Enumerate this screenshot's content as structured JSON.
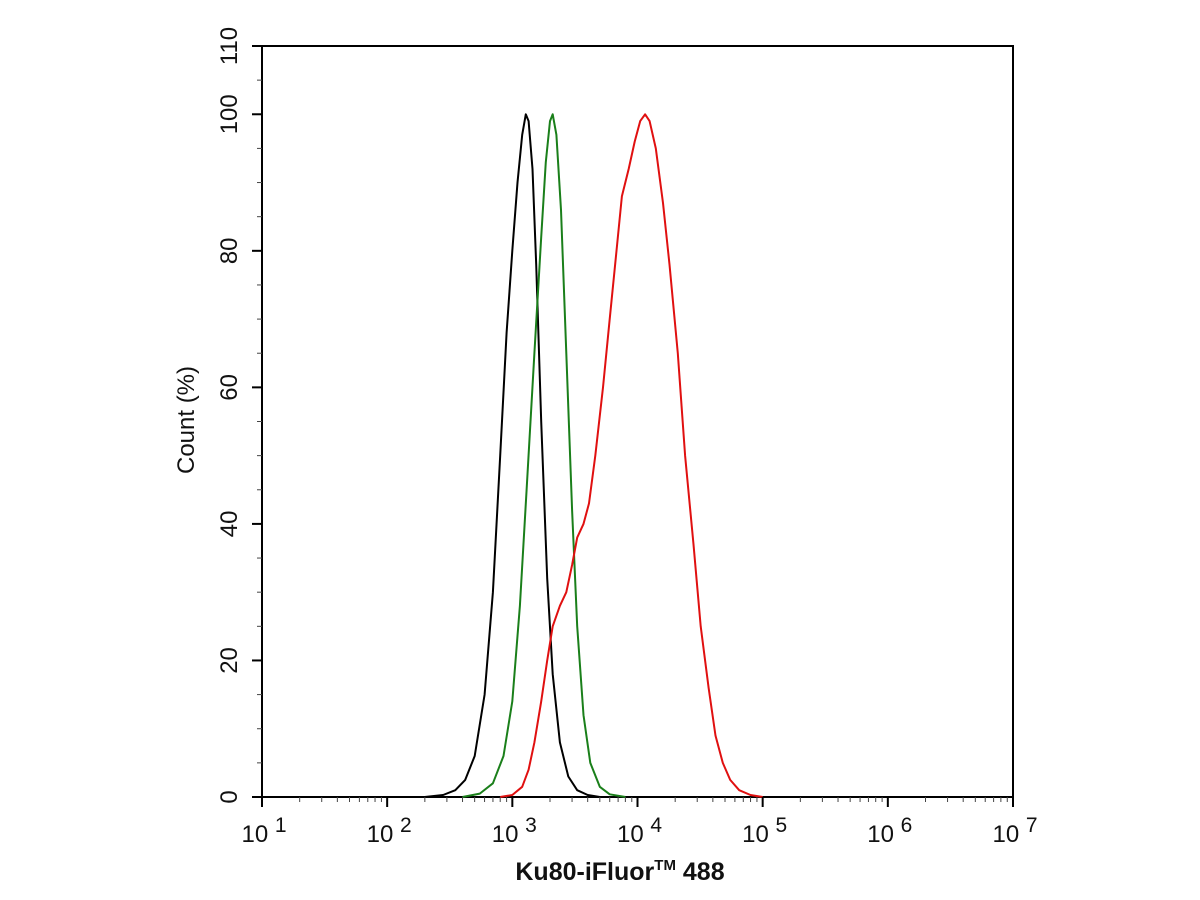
{
  "chart_data": {
    "type": "line",
    "title": "",
    "xlabel_main": "Ku80-iFluor",
    "xlabel_tm": "TM",
    "xlabel_tail": " 488",
    "ylabel": "Count  (%)",
    "x_scale": "log",
    "xlim": [
      10,
      10000000
    ],
    "ylim": [
      0,
      110
    ],
    "grid": false,
    "legend": "none",
    "x_ticks": [
      {
        "base": "10",
        "exp": "1",
        "value": 10
      },
      {
        "base": "10",
        "exp": "2",
        "value": 100
      },
      {
        "base": "10",
        "exp": "3",
        "value": 1000
      },
      {
        "base": "10",
        "exp": "4",
        "value": 10000
      },
      {
        "base": "10",
        "exp": "5",
        "value": 100000
      },
      {
        "base": "10",
        "exp": "6",
        "value": 1000000
      },
      {
        "base": "10",
        "exp": "7",
        "value": 10000000
      }
    ],
    "y_ticks": [
      "0",
      "20",
      "40",
      "60",
      "80",
      "100",
      "110"
    ],
    "series": [
      {
        "color": "#000000",
        "points": [
          [
            200,
            0
          ],
          [
            280,
            0.3
          ],
          [
            350,
            1
          ],
          [
            420,
            2.5
          ],
          [
            500,
            6
          ],
          [
            600,
            15
          ],
          [
            700,
            30
          ],
          [
            800,
            50
          ],
          [
            900,
            68
          ],
          [
            1000,
            80
          ],
          [
            1100,
            90
          ],
          [
            1200,
            97
          ],
          [
            1280,
            100
          ],
          [
            1350,
            99
          ],
          [
            1450,
            92
          ],
          [
            1550,
            78
          ],
          [
            1700,
            55
          ],
          [
            1900,
            32
          ],
          [
            2100,
            18
          ],
          [
            2400,
            8
          ],
          [
            2800,
            3
          ],
          [
            3300,
            1
          ],
          [
            4000,
            0.3
          ],
          [
            5000,
            0
          ]
        ]
      },
      {
        "color": "#1a7f1a",
        "points": [
          [
            400,
            0
          ],
          [
            550,
            0.5
          ],
          [
            700,
            2
          ],
          [
            850,
            6
          ],
          [
            1000,
            14
          ],
          [
            1150,
            28
          ],
          [
            1300,
            45
          ],
          [
            1500,
            65
          ],
          [
            1700,
            82
          ],
          [
            1850,
            93
          ],
          [
            2000,
            99
          ],
          [
            2100,
            100
          ],
          [
            2250,
            97
          ],
          [
            2450,
            86
          ],
          [
            2700,
            65
          ],
          [
            3000,
            42
          ],
          [
            3300,
            25
          ],
          [
            3700,
            12
          ],
          [
            4200,
            5
          ],
          [
            5000,
            1.5
          ],
          [
            6000,
            0.4
          ],
          [
            8000,
            0
          ]
        ]
      },
      {
        "color": "#e01010",
        "points": [
          [
            800,
            0
          ],
          [
            1000,
            0.3
          ],
          [
            1200,
            1.5
          ],
          [
            1350,
            4
          ],
          [
            1500,
            8
          ],
          [
            1700,
            14
          ],
          [
            1900,
            20
          ],
          [
            2100,
            25
          ],
          [
            2400,
            28
          ],
          [
            2700,
            30
          ],
          [
            3000,
            34
          ],
          [
            3300,
            38
          ],
          [
            3700,
            40
          ],
          [
            4100,
            43
          ],
          [
            4600,
            50
          ],
          [
            5300,
            60
          ],
          [
            6000,
            70
          ],
          [
            6800,
            80
          ],
          [
            7500,
            88
          ],
          [
            8500,
            92
          ],
          [
            9500,
            96
          ],
          [
            10500,
            99
          ],
          [
            11500,
            100
          ],
          [
            12500,
            99
          ],
          [
            14000,
            95
          ],
          [
            16000,
            87
          ],
          [
            18000,
            78
          ],
          [
            21000,
            65
          ],
          [
            24000,
            50
          ],
          [
            28000,
            37
          ],
          [
            32000,
            25
          ],
          [
            37000,
            16
          ],
          [
            42000,
            9
          ],
          [
            48000,
            5
          ],
          [
            55000,
            2.5
          ],
          [
            65000,
            1
          ],
          [
            80000,
            0.3
          ],
          [
            100000,
            0
          ]
        ]
      }
    ]
  }
}
